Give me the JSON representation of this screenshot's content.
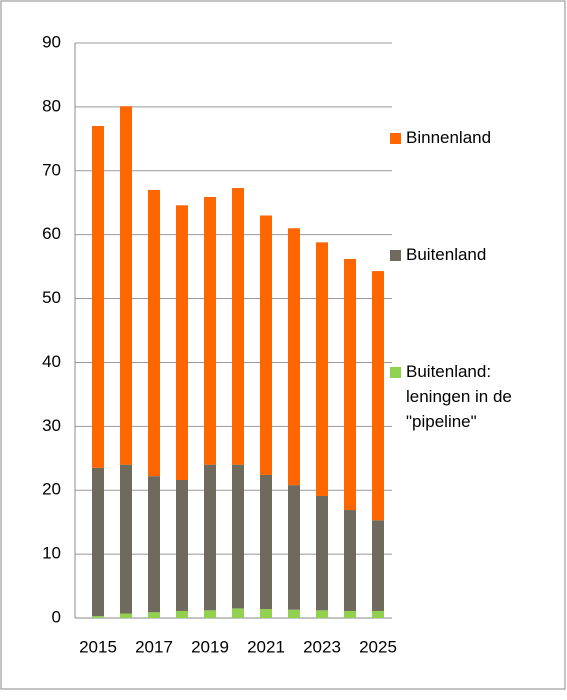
{
  "chart_data": {
    "type": "stacked_bar",
    "categories": [
      "2015",
      null,
      "2017",
      null,
      "2019",
      null,
      "2021",
      null,
      "2023",
      null,
      "2025"
    ],
    "series": [
      {
        "name": "Buitenland: leningen in de \"pipeline\"",
        "color": "#92d050",
        "values": [
          0.3,
          0.7,
          0.9,
          1.1,
          1.2,
          1.5,
          1.4,
          1.3,
          1.2,
          1.1,
          1.1
        ]
      },
      {
        "name": "Buitenland",
        "color": "#706a5e",
        "values": [
          23.2,
          23.3,
          21.3,
          20.5,
          22.8,
          22.5,
          21.0,
          19.5,
          17.9,
          15.8,
          14.2
        ]
      },
      {
        "name": "Binnenland",
        "color": "#ff6600",
        "values": [
          53.5,
          56.1,
          44.8,
          43.0,
          41.9,
          43.3,
          40.6,
          40.2,
          39.7,
          39.3,
          39.0
        ]
      }
    ],
    "ylim": [
      0,
      90
    ],
    "yticks": [
      0,
      10,
      20,
      30,
      40,
      50,
      60,
      70,
      80,
      90
    ],
    "grid": true
  }
}
